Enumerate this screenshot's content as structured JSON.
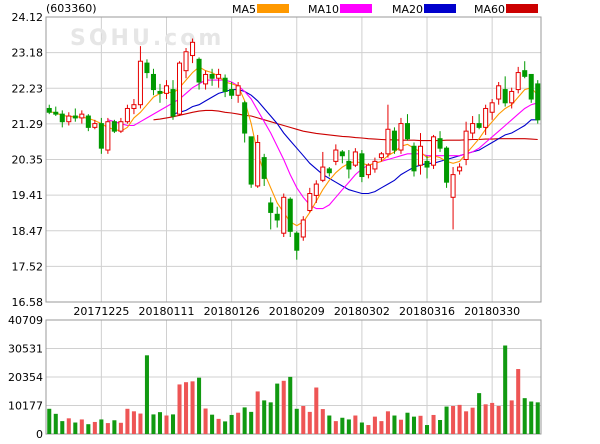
{
  "header": {
    "code": "(603360)",
    "legend": [
      {
        "label": "MA5",
        "color": "#ff9900"
      },
      {
        "label": "MA10",
        "color": "#ff00ff"
      },
      {
        "label": "MA20",
        "color": "#0000cc"
      },
      {
        "label": "MA60",
        "color": "#cc0000"
      }
    ]
  },
  "watermark": "SOHU.com",
  "colors": {
    "up": "#e60000",
    "down": "#009900",
    "up_volume": "#ee5555",
    "down_volume": "#119911",
    "grid": "#d0d0d0",
    "frame": "#999999"
  },
  "chart_data": [
    {
      "type": "candlestick",
      "title": "",
      "y_ticks": [
        "24.12",
        "23.18",
        "22.23",
        "21.29",
        "20.35",
        "19.41",
        "18.47",
        "17.52",
        "16.58"
      ],
      "ylim": [
        16.58,
        24.12
      ],
      "x_tick_labels": [
        {
          "index": 8,
          "label": "20171225"
        },
        {
          "index": 18,
          "label": "20180111"
        },
        {
          "index": 28,
          "label": "20180126"
        },
        {
          "index": 38,
          "label": "20180209"
        },
        {
          "index": 48,
          "label": "20180302"
        },
        {
          "index": 58,
          "label": "20180316"
        },
        {
          "index": 68,
          "label": "20180330"
        }
      ],
      "grid": true,
      "ohlc": [
        [
          21.7,
          21.8,
          21.55,
          21.6
        ],
        [
          21.6,
          21.75,
          21.5,
          21.55
        ],
        [
          21.55,
          21.65,
          21.2,
          21.35
        ],
        [
          21.35,
          21.6,
          21.25,
          21.5
        ],
        [
          21.5,
          21.7,
          21.35,
          21.45
        ],
        [
          21.45,
          21.65,
          21.3,
          21.55
        ],
        [
          21.5,
          21.55,
          21.1,
          21.2
        ],
        [
          21.2,
          21.4,
          21.15,
          21.3
        ],
        [
          21.3,
          21.45,
          20.5,
          20.65
        ],
        [
          20.6,
          21.45,
          20.5,
          21.35
        ],
        [
          21.35,
          21.4,
          21.05,
          21.1
        ],
        [
          21.1,
          21.45,
          21.05,
          21.35
        ],
        [
          21.35,
          21.8,
          21.3,
          21.7
        ],
        [
          21.7,
          21.95,
          21.55,
          21.8
        ],
        [
          21.8,
          23.35,
          21.7,
          22.95
        ],
        [
          22.9,
          23.0,
          22.5,
          22.65
        ],
        [
          22.6,
          22.75,
          22.05,
          22.2
        ],
        [
          22.15,
          22.35,
          21.85,
          22.1
        ],
        [
          22.1,
          22.45,
          21.95,
          22.3
        ],
        [
          22.2,
          22.45,
          21.4,
          21.5
        ],
        [
          21.55,
          22.95,
          21.5,
          22.9
        ],
        [
          22.7,
          23.3,
          22.5,
          23.2
        ],
        [
          23.1,
          23.55,
          22.9,
          23.45
        ],
        [
          23.0,
          23.05,
          22.2,
          22.4
        ],
        [
          22.35,
          22.7,
          22.2,
          22.6
        ],
        [
          22.6,
          22.75,
          22.3,
          22.5
        ],
        [
          22.5,
          22.75,
          22.25,
          22.6
        ],
        [
          22.5,
          22.6,
          22.0,
          22.15
        ],
        [
          22.2,
          22.4,
          21.95,
          22.05
        ],
        [
          22.05,
          22.4,
          21.85,
          22.3
        ],
        [
          21.85,
          21.9,
          20.8,
          21.05
        ],
        [
          20.95,
          20.95,
          19.6,
          19.7
        ],
        [
          19.65,
          21.0,
          19.6,
          20.8
        ],
        [
          20.4,
          20.5,
          19.65,
          19.85
        ],
        [
          19.2,
          19.35,
          18.5,
          18.95
        ],
        [
          18.9,
          19.1,
          18.55,
          18.75
        ],
        [
          18.4,
          19.45,
          18.3,
          19.35
        ],
        [
          19.3,
          19.35,
          18.3,
          18.45
        ],
        [
          18.4,
          18.45,
          17.7,
          17.95
        ],
        [
          18.3,
          18.85,
          18.2,
          18.75
        ],
        [
          19.0,
          19.6,
          18.95,
          19.45
        ],
        [
          19.4,
          19.8,
          19.2,
          19.7
        ],
        [
          19.8,
          20.55,
          19.75,
          20.15
        ],
        [
          20.1,
          20.15,
          19.9,
          20.0
        ],
        [
          20.3,
          20.75,
          20.2,
          20.6
        ],
        [
          20.55,
          20.6,
          20.25,
          20.45
        ],
        [
          20.3,
          20.6,
          19.85,
          20.1
        ],
        [
          20.2,
          20.65,
          20.15,
          20.55
        ],
        [
          20.5,
          20.6,
          19.75,
          19.9
        ],
        [
          19.95,
          20.25,
          19.85,
          20.2
        ],
        [
          20.1,
          20.4,
          20.0,
          20.3
        ],
        [
          20.4,
          20.55,
          20.3,
          20.5
        ],
        [
          20.5,
          21.8,
          20.4,
          21.15
        ],
        [
          21.1,
          21.2,
          20.5,
          20.6
        ],
        [
          20.6,
          21.45,
          20.5,
          21.3
        ],
        [
          21.3,
          21.55,
          20.85,
          20.9
        ],
        [
          20.7,
          20.8,
          19.9,
          20.05
        ],
        [
          20.2,
          21.05,
          19.95,
          20.7
        ],
        [
          20.3,
          20.45,
          19.85,
          20.15
        ],
        [
          20.2,
          21.0,
          20.1,
          20.95
        ],
        [
          20.9,
          21.1,
          20.55,
          20.65
        ],
        [
          20.65,
          20.7,
          19.6,
          19.75
        ],
        [
          19.35,
          20.15,
          18.5,
          19.95
        ],
        [
          20.05,
          20.25,
          19.95,
          20.15
        ],
        [
          20.35,
          21.35,
          20.2,
          21.1
        ],
        [
          21.05,
          21.5,
          20.9,
          21.3
        ],
        [
          21.3,
          21.55,
          21.15,
          21.2
        ],
        [
          21.2,
          21.8,
          21.0,
          21.7
        ],
        [
          21.6,
          21.95,
          21.4,
          21.85
        ],
        [
          21.95,
          22.4,
          21.8,
          22.3
        ],
        [
          22.2,
          22.55,
          21.75,
          21.85
        ],
        [
          21.85,
          22.25,
          21.7,
          22.15
        ],
        [
          22.2,
          22.8,
          22.1,
          22.65
        ],
        [
          22.7,
          22.95,
          22.5,
          22.55
        ],
        [
          22.6,
          22.6,
          21.85,
          21.95
        ],
        [
          22.35,
          22.45,
          21.3,
          21.4
        ]
      ],
      "ma5": [
        21.62,
        21.58,
        21.52,
        21.49,
        21.48,
        21.47,
        21.44,
        21.38,
        21.3,
        21.19,
        21.15,
        21.1,
        21.2,
        21.45,
        21.6,
        21.8,
        22.0,
        22.1,
        22.15,
        22.1,
        22.25,
        22.45,
        22.65,
        22.8,
        22.7,
        22.65,
        22.55,
        22.4,
        22.35,
        22.3,
        21.9,
        21.3,
        20.5,
        20.0,
        19.6,
        19.2,
        18.95,
        18.7,
        18.6,
        18.7,
        18.95,
        19.25,
        19.55,
        19.8,
        20.0,
        20.15,
        20.25,
        20.3,
        20.25,
        20.2,
        20.25,
        20.3,
        20.45,
        20.55,
        20.7,
        20.75,
        20.65,
        20.55,
        20.4,
        20.45,
        20.4,
        20.3,
        20.25,
        20.3,
        20.5,
        20.7,
        20.9,
        21.15,
        21.35,
        21.55,
        21.7,
        21.8,
        22.0,
        22.2,
        22.25,
        22.05
      ],
      "ma10": [
        null,
        null,
        null,
        null,
        null,
        null,
        null,
        null,
        null,
        21.4,
        21.35,
        21.3,
        21.25,
        21.25,
        21.35,
        21.45,
        21.55,
        21.65,
        21.75,
        21.85,
        21.95,
        22.1,
        22.25,
        22.35,
        22.45,
        22.45,
        22.45,
        22.45,
        22.4,
        22.3,
        22.15,
        21.95,
        21.65,
        21.35,
        21.05,
        20.7,
        20.35,
        19.95,
        19.6,
        19.35,
        19.15,
        19.05,
        19.05,
        19.15,
        19.35,
        19.55,
        19.75,
        19.95,
        20.1,
        20.2,
        20.25,
        20.3,
        20.35,
        20.4,
        20.45,
        20.5,
        20.5,
        20.5,
        20.45,
        20.45,
        20.45,
        20.45,
        20.45,
        20.45,
        20.5,
        20.55,
        20.65,
        20.8,
        20.95,
        21.1,
        21.25,
        21.4,
        21.55,
        21.7,
        21.8,
        21.85
      ],
      "ma20": [
        null,
        null,
        null,
        null,
        null,
        null,
        null,
        null,
        null,
        null,
        null,
        null,
        null,
        null,
        null,
        null,
        null,
        null,
        null,
        21.55,
        21.6,
        21.65,
        21.75,
        21.8,
        21.9,
        22.0,
        22.1,
        22.15,
        22.2,
        22.2,
        22.15,
        22.05,
        21.9,
        21.7,
        21.5,
        21.3,
        21.05,
        20.85,
        20.65,
        20.45,
        20.25,
        20.1,
        19.95,
        19.85,
        19.75,
        19.65,
        19.55,
        19.5,
        19.45,
        19.45,
        19.5,
        19.6,
        19.7,
        19.8,
        19.95,
        20.05,
        20.15,
        20.2,
        20.25,
        20.25,
        20.3,
        20.35,
        20.4,
        20.45,
        20.5,
        20.55,
        20.6,
        20.7,
        20.8,
        20.9,
        21.0,
        21.05,
        21.15,
        21.25,
        21.4,
        21.4
      ],
      "ma60": [
        null,
        null,
        null,
        null,
        null,
        null,
        null,
        null,
        null,
        null,
        null,
        null,
        null,
        null,
        null,
        null,
        21.4,
        21.42,
        21.45,
        21.48,
        21.52,
        21.56,
        21.6,
        21.63,
        21.65,
        21.65,
        21.63,
        21.6,
        21.58,
        21.55,
        21.52,
        21.5,
        21.45,
        21.4,
        21.35,
        21.3,
        21.25,
        21.2,
        21.15,
        21.1,
        21.07,
        21.04,
        21.02,
        21.0,
        20.98,
        20.96,
        20.95,
        20.93,
        20.92,
        20.9,
        20.89,
        20.88,
        20.87,
        20.87,
        20.86,
        20.86,
        20.86,
        20.85,
        20.85,
        20.85,
        20.85,
        20.86,
        20.86,
        20.86,
        20.87,
        20.88,
        20.88,
        20.89,
        20.89,
        20.9,
        20.9,
        20.9,
        20.9,
        20.9,
        20.89,
        20.88
      ],
      "series": [
        {
          "name": "MA5",
          "key": "ma5",
          "color": "#ff9900"
        },
        {
          "name": "MA10",
          "key": "ma10",
          "color": "#ff00ff"
        },
        {
          "name": "MA20",
          "key": "ma20",
          "color": "#0000cc"
        },
        {
          "name": "MA60",
          "key": "ma60",
          "color": "#cc0000"
        }
      ]
    },
    {
      "type": "bar",
      "title": "",
      "y_ticks": [
        "40709",
        "30531",
        "20354",
        "10177",
        "0"
      ],
      "ylim": [
        0,
        40709
      ],
      "volumes": [
        9000,
        7200,
        4600,
        5600,
        4100,
        5200,
        3500,
        4300,
        5200,
        3900,
        4900,
        4000,
        9000,
        8100,
        7300,
        28100,
        7000,
        7800,
        6600,
        7000,
        17700,
        18500,
        18800,
        20100,
        9100,
        6900,
        5400,
        4500,
        6800,
        7600,
        9500,
        7900,
        15200,
        12000,
        11300,
        18000,
        19000,
        20400,
        9000,
        10000,
        7900,
        16600,
        8900,
        6600,
        4600,
        5800,
        5200,
        6600,
        4100,
        3200,
        6200,
        4600,
        8100,
        6600,
        5100,
        7600,
        6200,
        6500,
        3200,
        6800,
        5000,
        9800,
        10000,
        10400,
        8100,
        9400,
        14600,
        10600,
        11100,
        10000,
        31600,
        12000,
        23200,
        12800,
        11600,
        11300
      ]
    }
  ]
}
